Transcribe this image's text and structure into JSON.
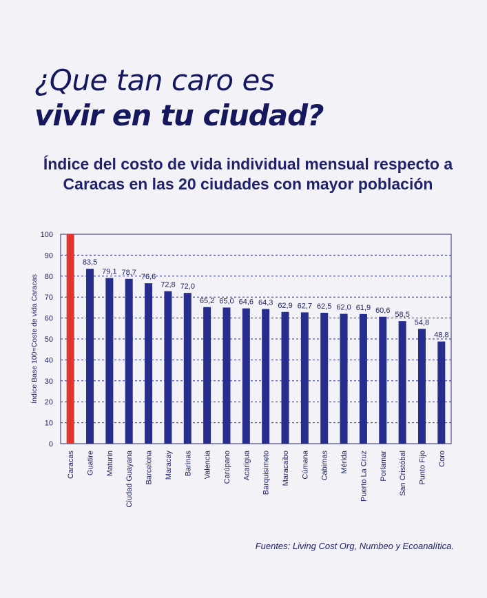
{
  "headline": {
    "line1": "¿Que tan caro es",
    "line2": "vivir en tu ciudad?"
  },
  "chart_data": {
    "type": "bar",
    "title": "Índice del costo de vida individual mensual respecto a Caracas en las 20 ciudades con mayor población",
    "ylabel": "Índice Base 100=Coste de vida Caracas",
    "xlabel": "",
    "ylim": [
      0,
      100
    ],
    "yticks": [
      0,
      10,
      20,
      30,
      40,
      50,
      60,
      70,
      80,
      90,
      100
    ],
    "grid": true,
    "categories": [
      "Caracas",
      "Guatire",
      "Maturín",
      "Ciudad Guayana",
      "Barcelona",
      "Maracay",
      "Barinas",
      "Valencia",
      "Carúpano",
      "Acarigua",
      "Barquisimeto",
      "Maracaibo",
      "Cúmana",
      "Cabimas",
      "Mérida",
      "Puerto La Cruz",
      "Porlamar",
      "San Cristóbal",
      "Punto Fijo",
      "Coro"
    ],
    "values": [
      100,
      83.5,
      79.1,
      78.7,
      76.6,
      72.8,
      72.0,
      65.2,
      65.0,
      64.6,
      64.3,
      62.9,
      62.7,
      62.5,
      62.0,
      61.9,
      60.6,
      58.5,
      54.8,
      48.8
    ],
    "value_labels": [
      "",
      "83,5",
      "79,1",
      "78,7",
      "76,6",
      "72,8",
      "72,0",
      "65,2",
      "65,0",
      "64,6",
      "64,3",
      "62,9",
      "62,7",
      "62,5",
      "62,0",
      "61,9",
      "60,6",
      "58,5",
      "54,8",
      "48,8"
    ],
    "colors": {
      "highlight": "#e2352f",
      "bar": "#262d8c",
      "axis": "#2b2f7a",
      "grid": "#2b2f7a",
      "text": "#1f2366"
    }
  },
  "source": "Fuentes: Living Cost Org, Numbeo y Ecoanalítica."
}
